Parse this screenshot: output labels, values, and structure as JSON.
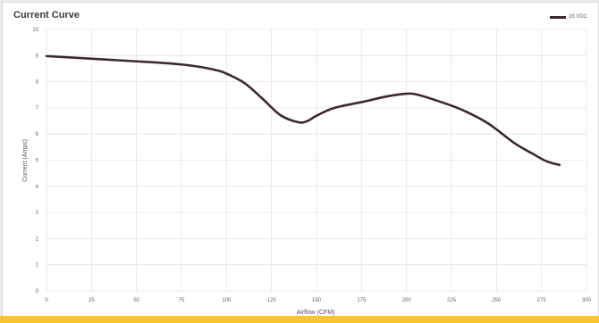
{
  "chart_data": {
    "type": "line",
    "title": "Current Curve",
    "xlabel": "Airflow (CFM)",
    "ylabel": "Current (Amps)",
    "xlim": [
      0,
      300
    ],
    "ylim": [
      0,
      10
    ],
    "x_ticks": [
      0,
      25,
      50,
      75,
      100,
      125,
      150,
      175,
      200,
      225,
      250,
      275,
      300
    ],
    "y_ticks": [
      0,
      1,
      2,
      3,
      4,
      5,
      6,
      7,
      8,
      9,
      10
    ],
    "grid": true,
    "legend_position": "top-right",
    "series": [
      {
        "name": "28 VDC",
        "color": "#3a2a2a",
        "x": [
          0,
          25,
          50,
          60,
          75,
          85,
          95,
          100,
          110,
          120,
          130,
          140,
          145,
          150,
          160,
          175,
          190,
          200,
          205,
          215,
          230,
          245,
          260,
          270,
          278,
          285
        ],
        "y": [
          8.98,
          8.88,
          8.78,
          8.74,
          8.66,
          8.57,
          8.43,
          8.31,
          7.95,
          7.35,
          6.72,
          6.45,
          6.5,
          6.7,
          7.0,
          7.22,
          7.45,
          7.54,
          7.52,
          7.32,
          6.95,
          6.42,
          5.65,
          5.25,
          4.95,
          4.82
        ]
      }
    ]
  },
  "colors": {
    "accent_bar": "#f6c62c",
    "grid": "#e4e4e4",
    "line": "#3a2a2a"
  }
}
